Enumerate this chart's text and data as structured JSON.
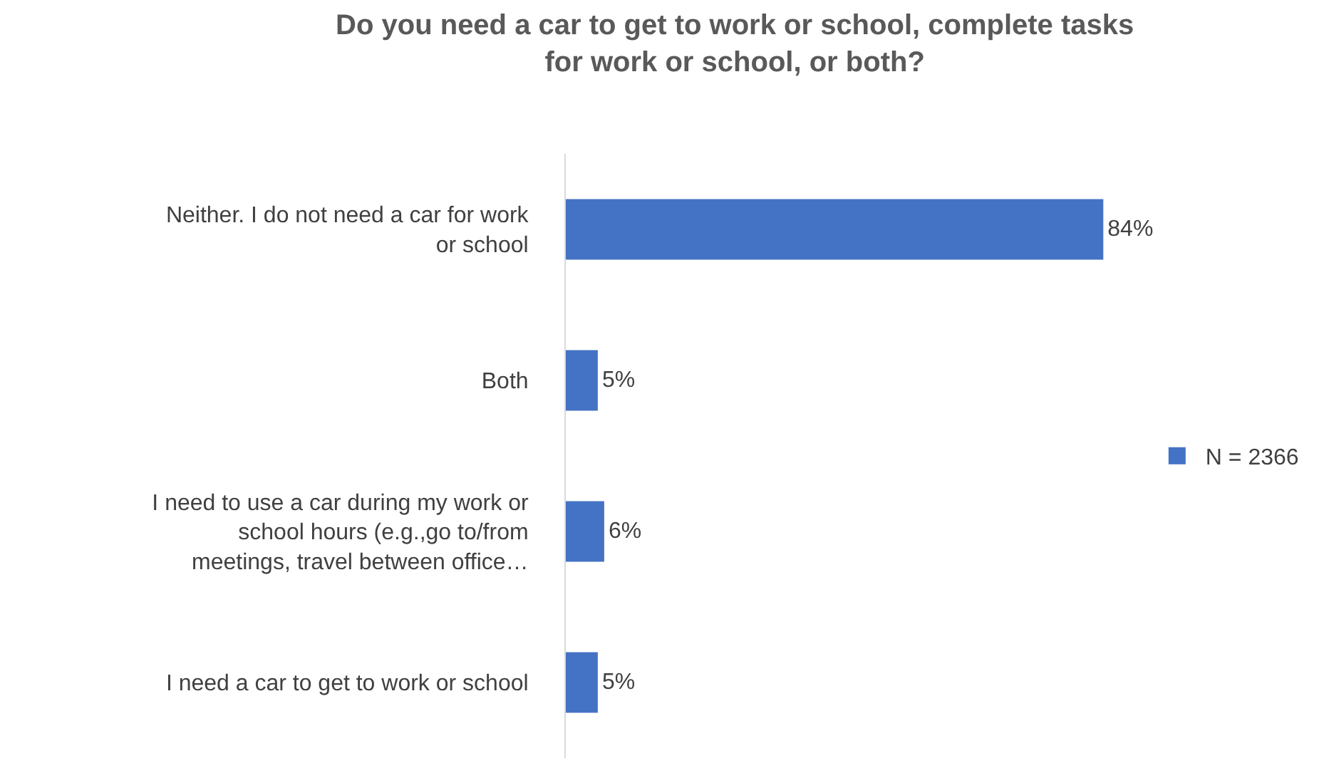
{
  "chart_data": {
    "type": "bar",
    "orientation": "horizontal",
    "title": "Do you need a car to get to work or school, complete tasks for work or school, or both?",
    "categories": [
      "Neither. I do not need a car for work or school",
      "Both",
      "I need to use a car during my work or school hours (e.g.,go to/from meetings, travel between office…",
      "I need a car to get to work or school"
    ],
    "series": [
      {
        "name": "N = 2366",
        "color": "#4472c4",
        "values": [
          84,
          5,
          6,
          5
        ],
        "value_labels": [
          "84%",
          "5%",
          "6%",
          "5%"
        ]
      }
    ],
    "legend": "right",
    "grid": false
  }
}
